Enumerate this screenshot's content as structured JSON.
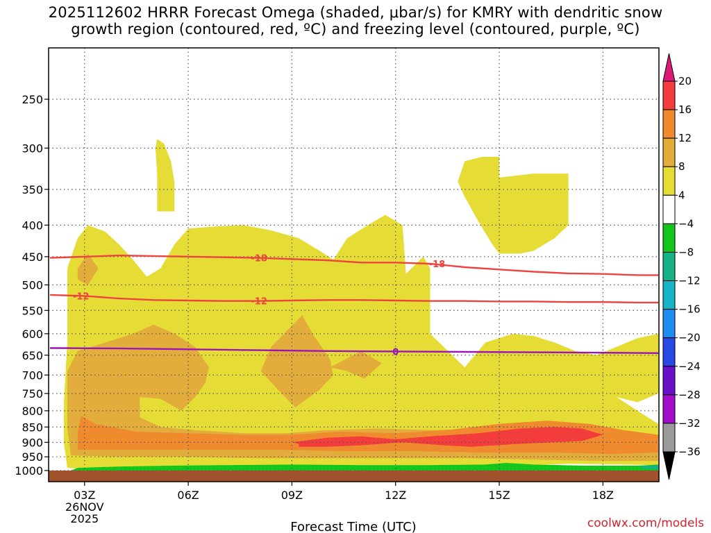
{
  "title_line1": "2025112602 HRRR Forecast Omega (shaded, μbar/s) for KMRY with dendritic snow",
  "title_line2": "growth region (contoured, red, ºC) and freezing level (contoured, purple, ºC)",
  "credit": "coolwx.com/models",
  "chart_data": {
    "type": "heatmap",
    "title": "2025112602 HRRR Forecast Omega (shaded, μbar/s) for KMRY with dendritic snow growth region (contoured, red, ºC) and freezing level (contoured, purple, ºC)",
    "xlabel": "Forecast Time (UTC)",
    "ylabel": "",
    "x_range_hours": [
      2,
      19.6
    ],
    "y_range_hpa": [
      1000,
      200
    ],
    "y_scale": "log",
    "x_ticks": [
      {
        "hour": 3,
        "label": "03Z",
        "sublabels": [
          "26NOV",
          "2025"
        ]
      },
      {
        "hour": 6,
        "label": "06Z",
        "sublabels": []
      },
      {
        "hour": 9,
        "label": "09Z",
        "sublabels": []
      },
      {
        "hour": 12,
        "label": "12Z",
        "sublabels": []
      },
      {
        "hour": 15,
        "label": "15Z",
        "sublabels": []
      },
      {
        "hour": 18,
        "label": "18Z",
        "sublabels": []
      }
    ],
    "y_ticks": [
      250,
      300,
      350,
      400,
      450,
      500,
      550,
      600,
      650,
      700,
      750,
      800,
      850,
      900,
      950,
      1000
    ],
    "grid": true,
    "colorbar": {
      "labels": [
        "20",
        "16",
        "12",
        "8",
        "4",
        "-4",
        "-8",
        "-12",
        "-16",
        "-20",
        "-24",
        "-28",
        "-32",
        "-36"
      ],
      "colors": [
        "#dc1a78",
        "#f33c3c",
        "#ef8a2e",
        "#e3ad3c",
        "#e6dc36",
        "#ffffff",
        "#12c61c",
        "#16b286",
        "#16b4c4",
        "#1e8cf0",
        "#2848e6",
        "#6a10c8",
        "#a40ccc",
        "#9a9a9a",
        "#000000"
      ]
    },
    "omega_regions": [
      {
        "level": 4,
        "color": "#e6dc36",
        "points": [
          [
            2.5,
            990
          ],
          [
            2.4,
            900
          ],
          [
            2.4,
            780
          ],
          [
            2.5,
            620
          ],
          [
            2.5,
            470
          ],
          [
            2.8,
            420
          ],
          [
            3.1,
            400
          ],
          [
            3.6,
            410
          ],
          [
            4,
            430
          ],
          [
            4.4,
            455
          ],
          [
            4.8,
            485
          ],
          [
            5.2,
            470
          ],
          [
            5.6,
            430
          ],
          [
            6,
            405
          ],
          [
            6.8,
            402
          ],
          [
            7.6,
            400
          ],
          [
            8.4,
            408
          ],
          [
            9.2,
            420
          ],
          [
            9.8,
            440
          ],
          [
            10.2,
            455
          ],
          [
            10.6,
            420
          ],
          [
            11.2,
            400
          ],
          [
            11.7,
            385
          ],
          [
            12.2,
            400
          ],
          [
            12.3,
            480
          ],
          [
            12.8,
            450
          ],
          [
            13,
            470
          ],
          [
            13,
            600
          ],
          [
            14,
            680
          ],
          [
            14.6,
            620
          ],
          [
            15.4,
            600
          ],
          [
            16,
            605
          ],
          [
            16.6,
            620
          ],
          [
            17.2,
            640
          ],
          [
            17.8,
            650
          ],
          [
            18.4,
            630
          ],
          [
            19,
            610
          ],
          [
            19.6,
            600
          ],
          [
            19.6,
            750
          ],
          [
            19,
            775
          ],
          [
            18.4,
            760
          ],
          [
            19,
            800
          ],
          [
            19.6,
            840
          ],
          [
            19.6,
            980
          ],
          [
            17,
            975
          ],
          [
            15,
            985
          ],
          [
            13,
            995
          ],
          [
            11,
            998
          ],
          [
            9,
            995
          ],
          [
            7,
            985
          ],
          [
            5,
            990
          ],
          [
            3,
            995
          ]
        ]
      },
      {
        "level": 4,
        "color": "#e6dc36",
        "points": [
          [
            5.1,
            290
          ],
          [
            5.3,
            295
          ],
          [
            5.5,
            315
          ],
          [
            5.6,
            340
          ],
          [
            5.6,
            380
          ],
          [
            5.1,
            380
          ],
          [
            5.1,
            330
          ],
          [
            5.05,
            300
          ]
        ]
      },
      {
        "level": 4,
        "color": "#e6dc36",
        "points": [
          [
            14,
            315
          ],
          [
            14.5,
            310
          ],
          [
            15,
            310
          ],
          [
            15,
            335
          ],
          [
            16,
            330
          ],
          [
            17,
            330
          ],
          [
            17,
            400
          ],
          [
            16.6,
            420
          ],
          [
            16,
            440
          ],
          [
            15.6,
            445
          ],
          [
            15,
            445
          ],
          [
            14.8,
            430
          ],
          [
            14.4,
            395
          ],
          [
            14,
            360
          ],
          [
            13.8,
            340
          ]
        ]
      },
      {
        "level": 8,
        "color": "#e3ad3c",
        "points": [
          [
            2.5,
            690
          ],
          [
            2.8,
            640
          ],
          [
            3.6,
            620
          ],
          [
            4.4,
            600
          ],
          [
            5,
            580
          ],
          [
            5.6,
            600
          ],
          [
            6.2,
            630
          ],
          [
            6.6,
            680
          ],
          [
            6.5,
            720
          ],
          [
            6.2,
            760
          ],
          [
            5.8,
            800
          ],
          [
            5.2,
            765
          ],
          [
            4.6,
            760
          ],
          [
            4.6,
            820
          ],
          [
            5.2,
            850
          ],
          [
            6.2,
            860
          ],
          [
            7.6,
            870
          ],
          [
            8.8,
            870
          ],
          [
            10,
            860
          ],
          [
            11.5,
            855
          ],
          [
            13,
            860
          ],
          [
            14.6,
            855
          ],
          [
            15.8,
            840
          ],
          [
            17,
            845
          ],
          [
            17.8,
            860
          ],
          [
            18.8,
            875
          ],
          [
            19.6,
            895
          ],
          [
            19.6,
            965
          ],
          [
            18,
            965
          ],
          [
            16,
            960
          ],
          [
            14,
            955
          ],
          [
            12,
            955
          ],
          [
            10,
            955
          ],
          [
            8,
            955
          ],
          [
            6,
            950
          ],
          [
            4,
            950
          ],
          [
            2.6,
            945
          ],
          [
            2.5,
            850
          ]
        ]
      },
      {
        "level": 8,
        "color": "#e3ad3c",
        "points": [
          [
            2.8,
            470
          ],
          [
            3.1,
            445
          ],
          [
            3.4,
            470
          ],
          [
            3.1,
            500
          ],
          [
            2.8,
            490
          ]
        ]
      },
      {
        "level": 8,
        "color": "#e3ad3c",
        "points": [
          [
            9.3,
            560
          ],
          [
            9.6,
            600
          ],
          [
            10.1,
            660
          ],
          [
            10.2,
            700
          ],
          [
            9.8,
            740
          ],
          [
            9.1,
            790
          ],
          [
            8.6,
            740
          ],
          [
            8.1,
            690
          ],
          [
            8.4,
            630
          ],
          [
            8.9,
            590
          ]
        ]
      },
      {
        "level": 8,
        "color": "#e3ad3c",
        "points": [
          [
            10.1,
            680
          ],
          [
            11,
            640
          ],
          [
            11.6,
            670
          ],
          [
            11.1,
            710
          ],
          [
            10.6,
            690
          ]
        ]
      },
      {
        "level": 12,
        "color": "#ef8a2e",
        "points": [
          [
            2.9,
            815
          ],
          [
            3.3,
            840
          ],
          [
            4.5,
            865
          ],
          [
            6,
            870
          ],
          [
            7.6,
            875
          ],
          [
            9,
            875
          ],
          [
            10.4,
            865
          ],
          [
            12,
            870
          ],
          [
            13.5,
            860
          ],
          [
            15,
            840
          ],
          [
            16.4,
            830
          ],
          [
            17.6,
            840
          ],
          [
            18.6,
            860
          ],
          [
            19.6,
            875
          ],
          [
            19.6,
            935
          ],
          [
            18.3,
            940
          ],
          [
            16.5,
            935
          ],
          [
            14.5,
            935
          ],
          [
            12.5,
            930
          ],
          [
            10.5,
            930
          ],
          [
            8.5,
            925
          ],
          [
            6.5,
            925
          ],
          [
            4.5,
            925
          ],
          [
            2.8,
            925
          ],
          [
            2.8,
            870
          ]
        ]
      },
      {
        "level": 16,
        "color": "#f33c3c",
        "points": [
          [
            9,
            900
          ],
          [
            10,
            885
          ],
          [
            11,
            880
          ],
          [
            12,
            890
          ],
          [
            13,
            880
          ],
          [
            14.4,
            870
          ],
          [
            15.6,
            855
          ],
          [
            16.6,
            850
          ],
          [
            17.4,
            855
          ],
          [
            18,
            875
          ],
          [
            17.4,
            895
          ],
          [
            16.6,
            900
          ],
          [
            15.6,
            905
          ],
          [
            14.2,
            915
          ],
          [
            13.4,
            910
          ],
          [
            12.2,
            900
          ],
          [
            11,
            910
          ],
          [
            10,
            915
          ],
          [
            9.2,
            915
          ],
          [
            9.2,
            905
          ]
        ]
      },
      {
        "level": 8,
        "color": "#e3ad3c",
        "points": [
          [
            9.1,
            640
          ],
          [
            9.2,
            680
          ],
          [
            9.1,
            720
          ],
          [
            8.95,
            680
          ]
        ]
      },
      {
        "level": -4,
        "color": "#12c61c",
        "points": [
          [
            2.8,
            990
          ],
          [
            4,
            985
          ],
          [
            5.5,
            982
          ],
          [
            7,
            980
          ],
          [
            9,
            978
          ],
          [
            11,
            980
          ],
          [
            13,
            980
          ],
          [
            14.6,
            978
          ],
          [
            15.2,
            972
          ],
          [
            16,
            978
          ],
          [
            17.5,
            982
          ],
          [
            19,
            982
          ],
          [
            19.6,
            978
          ],
          [
            19.6,
            1000
          ],
          [
            2.6,
            1000
          ]
        ]
      },
      {
        "level": -8,
        "color": "#16b286",
        "points": [
          [
            19.1,
            984
          ],
          [
            19.6,
            980
          ],
          [
            19.6,
            995
          ],
          [
            19.1,
            992
          ]
        ]
      }
    ],
    "dendritic_contours": [
      {
        "label": "-18",
        "color": "#ee4440",
        "points": [
          [
            2,
            452
          ],
          [
            4,
            448
          ],
          [
            6,
            450
          ],
          [
            8,
            452
          ],
          [
            10,
            456
          ],
          [
            11,
            460
          ],
          [
            12,
            460
          ],
          [
            13,
            462
          ],
          [
            14,
            468
          ],
          [
            15,
            472
          ],
          [
            16,
            476
          ],
          [
            17,
            479
          ],
          [
            18,
            480
          ],
          [
            19,
            482
          ],
          [
            19.6,
            482
          ]
        ]
      },
      {
        "label": "-12",
        "color": "#ee4440",
        "points": [
          [
            2,
            519
          ],
          [
            3,
            521
          ],
          [
            4,
            526
          ],
          [
            5,
            529
          ],
          [
            6,
            530
          ],
          [
            7,
            531
          ],
          [
            8,
            531
          ],
          [
            9,
            530
          ],
          [
            10,
            529
          ],
          [
            11,
            529
          ],
          [
            12,
            530
          ],
          [
            13,
            531
          ],
          [
            14,
            531
          ],
          [
            15,
            532
          ],
          [
            16,
            532
          ],
          [
            17,
            533
          ],
          [
            18,
            533
          ],
          [
            19,
            534
          ],
          [
            19.6,
            534
          ]
        ]
      }
    ],
    "freezing_level": [
      {
        "label": "0",
        "color": "#9a14b8",
        "points": [
          [
            2,
            633
          ],
          [
            4,
            634
          ],
          [
            6,
            636
          ],
          [
            8,
            638
          ],
          [
            10,
            640
          ],
          [
            12,
            641
          ],
          [
            14,
            642
          ],
          [
            16,
            643
          ],
          [
            18,
            644
          ],
          [
            19.6,
            645
          ]
        ]
      }
    ],
    "contour_labels": [
      {
        "text": "-18",
        "hour": 8.05,
        "hpa": 452,
        "color": "#ee4440"
      },
      {
        "text": "-18",
        "hour": 13.2,
        "hpa": 462,
        "color": "#ee4440"
      },
      {
        "text": "-12",
        "hour": 2.9,
        "hpa": 521,
        "color": "#ee4440"
      },
      {
        "text": "-12",
        "hour": 8.05,
        "hpa": 531,
        "color": "#ee4440"
      },
      {
        "text": "0",
        "hour": 12,
        "hpa": 641,
        "color": "#9a14b8"
      }
    ],
    "surface_color": "#a0522d",
    "surface_hpa": 1000
  }
}
